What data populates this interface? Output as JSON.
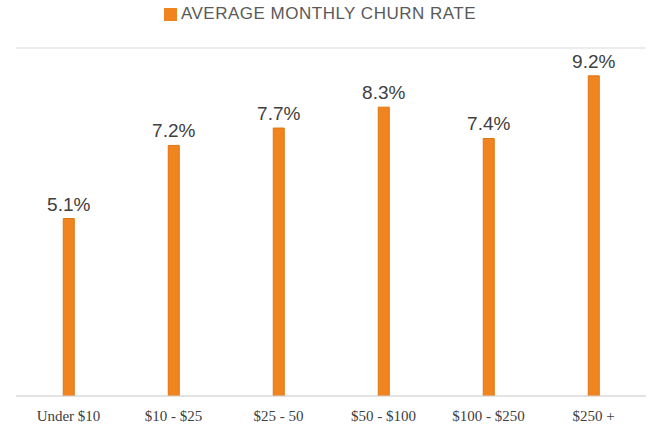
{
  "chart_data": {
    "type": "bar",
    "categories": [
      "Under $10",
      "$10 - $25",
      "$25 - 50",
      "$50 - $100",
      "$100 - $250",
      "$250 +"
    ],
    "series": [
      {
        "name": "AVERAGE MONTHLY CHURN RATE",
        "color": "#f0841f",
        "values": [
          5.1,
          7.2,
          7.7,
          8.3,
          7.4,
          9.2
        ],
        "value_labels": [
          "5.1%",
          "7.2%",
          "7.7%",
          "8.3%",
          "7.4%",
          "9.2%"
        ]
      }
    ],
    "ylim": [
      0,
      10
    ],
    "yticks": [
      0,
      1,
      2,
      3,
      4,
      5,
      6,
      7,
      8,
      9,
      10
    ],
    "grid": true,
    "legend": "top",
    "data_labels": true,
    "tick_labels": "x"
  }
}
